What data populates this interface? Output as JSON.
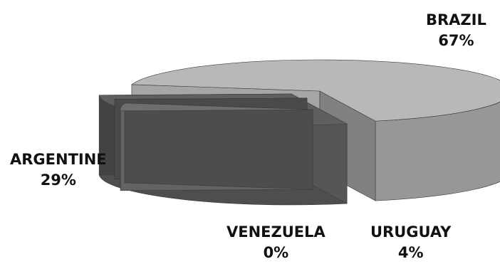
{
  "chart_data": {
    "type": "pie",
    "style": "3d-exploded",
    "title": "",
    "legend": "none",
    "slices": [
      {
        "label": "BRAZIL",
        "value": 67,
        "value_label": "67%",
        "color": "#b8b8b8"
      },
      {
        "label": "ARGENTINE",
        "value": 29,
        "value_label": "29%",
        "color": "#5f5f5f"
      },
      {
        "label": "VENEZUELA",
        "value": 0,
        "value_label": "0%",
        "color": "#6a6a6a"
      },
      {
        "label": "URUGUAY",
        "value": 4,
        "value_label": "4%",
        "color": "#6e6e6e"
      }
    ]
  }
}
